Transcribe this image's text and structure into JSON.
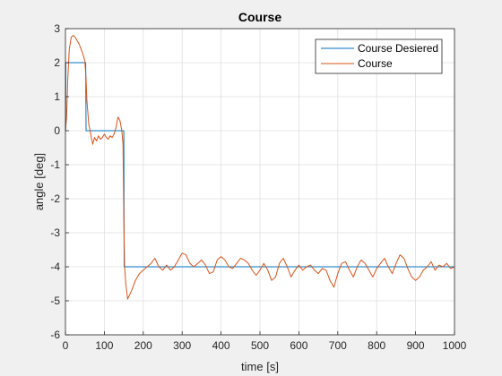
{
  "chart_data": {
    "type": "line",
    "title": "Course",
    "xlabel": "time [s]",
    "ylabel": "angle [deg]",
    "xlim": [
      0,
      1000
    ],
    "ylim": [
      -6,
      3
    ],
    "xticks": [
      0,
      100,
      200,
      300,
      400,
      500,
      600,
      700,
      800,
      900,
      1000
    ],
    "yticks": [
      -6,
      -5,
      -4,
      -3,
      -2,
      -1,
      0,
      1,
      2,
      3
    ],
    "grid": true,
    "legend_position": "top-right",
    "series": [
      {
        "name": "Course Desiered",
        "color": "#0072bd",
        "x": [
          0,
          0.5,
          1,
          52,
          53,
          150,
          151,
          1000
        ],
        "y": [
          0,
          0,
          2,
          2,
          0,
          0,
          -4,
          -4
        ]
      },
      {
        "name": "Course",
        "color": "#d95319",
        "x": [
          0,
          3,
          6,
          10,
          15,
          20,
          25,
          30,
          35,
          40,
          45,
          50,
          53,
          55,
          60,
          65,
          70,
          75,
          80,
          85,
          90,
          95,
          100,
          105,
          110,
          115,
          120,
          125,
          130,
          135,
          140,
          145,
          148,
          150,
          152,
          155,
          160,
          170,
          180,
          190,
          200,
          210,
          220,
          230,
          240,
          250,
          260,
          270,
          280,
          290,
          300,
          310,
          320,
          330,
          340,
          350,
          360,
          370,
          380,
          390,
          400,
          410,
          420,
          430,
          440,
          450,
          460,
          470,
          480,
          490,
          500,
          510,
          520,
          530,
          540,
          550,
          560,
          570,
          580,
          590,
          600,
          610,
          620,
          630,
          640,
          650,
          660,
          670,
          680,
          690,
          700,
          710,
          720,
          730,
          740,
          750,
          760,
          770,
          780,
          790,
          800,
          810,
          820,
          830,
          840,
          850,
          860,
          870,
          880,
          890,
          900,
          910,
          920,
          930,
          940,
          950,
          960,
          970,
          980,
          990,
          1000
        ],
        "y": [
          0,
          0.4,
          1.5,
          2.4,
          2.75,
          2.8,
          2.75,
          2.65,
          2.55,
          2.4,
          2.25,
          2.05,
          1.5,
          0.9,
          0.2,
          -0.1,
          -0.4,
          -0.2,
          -0.3,
          -0.15,
          -0.25,
          -0.2,
          -0.1,
          -0.2,
          -0.25,
          -0.15,
          -0.2,
          -0.1,
          0.1,
          0.4,
          0.3,
          0.0,
          -0.4,
          -2.5,
          -4.0,
          -4.5,
          -4.95,
          -4.7,
          -4.4,
          -4.2,
          -4.1,
          -4.0,
          -3.9,
          -3.75,
          -4.0,
          -4.1,
          -3.95,
          -4.1,
          -4.0,
          -3.8,
          -3.6,
          -3.65,
          -3.9,
          -4.0,
          -3.9,
          -3.8,
          -3.95,
          -4.2,
          -4.15,
          -3.8,
          -3.7,
          -3.8,
          -4.0,
          -4.05,
          -3.9,
          -3.75,
          -3.8,
          -3.9,
          -4.1,
          -4.25,
          -4.1,
          -3.9,
          -4.1,
          -4.4,
          -4.3,
          -3.9,
          -3.75,
          -4.0,
          -4.3,
          -4.1,
          -3.95,
          -4.1,
          -4.0,
          -3.95,
          -4.1,
          -4.2,
          -4.05,
          -4.1,
          -4.4,
          -4.6,
          -4.2,
          -3.9,
          -3.85,
          -4.1,
          -4.3,
          -4.0,
          -3.8,
          -3.9,
          -4.1,
          -4.3,
          -4.05,
          -3.9,
          -3.75,
          -4.0,
          -4.2,
          -3.9,
          -3.65,
          -3.75,
          -4.05,
          -4.3,
          -4.4,
          -4.3,
          -4.1,
          -4.0,
          -3.85,
          -4.1,
          -3.95,
          -4.0,
          -3.9,
          -4.05,
          -4.0
        ]
      }
    ]
  }
}
